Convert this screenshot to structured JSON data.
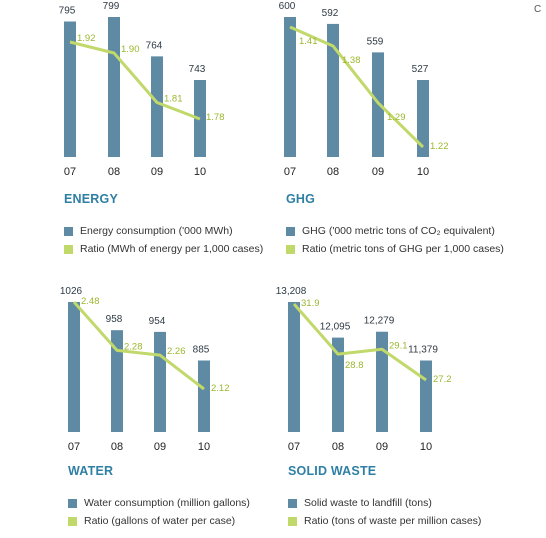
{
  "colors": {
    "bar": "#5e8aa3",
    "line": "#c1d86a",
    "ratio_text": "#9bb72f",
    "title": "#2f7fa5"
  },
  "corner_text": "C",
  "chart_data": [
    {
      "type": "bar",
      "title": "ENERGY",
      "categories": [
        "07",
        "08",
        "09",
        "10"
      ],
      "series": [
        {
          "name": "Energy consumption ('000 MWh)",
          "values": [
            795,
            799,
            764,
            743
          ],
          "labels": [
            "795",
            "799",
            "764",
            "743"
          ]
        },
        {
          "name": "Ratio (MWh of energy per 1,000 cases)",
          "values": [
            1.92,
            1.9,
            1.81,
            1.78
          ],
          "labels": [
            "1.92",
            "1.90",
            "1.81",
            "1.78"
          ]
        }
      ],
      "legend": [
        "Energy consumption ('000 MWh)",
        "Ratio (MWh of energy per 1,000 cases)"
      ]
    },
    {
      "type": "bar",
      "title": "GHG",
      "categories": [
        "07",
        "08",
        "09",
        "10"
      ],
      "series": [
        {
          "name": "GHG ('000 metric tons of CO₂ equivalent)",
          "values": [
            600,
            592,
            559,
            527
          ],
          "labels": [
            "600",
            "592",
            "559",
            "527"
          ]
        },
        {
          "name": "Ratio (metric tons of GHG per 1,000 cases)",
          "values": [
            1.41,
            1.38,
            1.29,
            1.22
          ],
          "labels": [
            "1.41",
            "1.38",
            "1.29",
            "1.22"
          ]
        }
      ],
      "legend": [
        "GHG ('000 metric tons of CO₂ equivalent)",
        "Ratio (metric tons of GHG per 1,000 cases)"
      ]
    },
    {
      "type": "bar",
      "title": "WATER",
      "categories": [
        "07",
        "08",
        "09",
        "10"
      ],
      "series": [
        {
          "name": "Water consumption (million gallons)",
          "values": [
            1026,
            958,
            954,
            885
          ],
          "labels": [
            "1026",
            "958",
            "954",
            "885"
          ]
        },
        {
          "name": "Ratio (gallons of water per case)",
          "values": [
            2.48,
            2.28,
            2.26,
            2.12
          ],
          "labels": [
            "2.48",
            "2.28",
            "2.26",
            "2.12"
          ]
        }
      ],
      "legend": [
        "Water consumption (million gallons)",
        "Ratio (gallons of water per case)"
      ]
    },
    {
      "type": "bar",
      "title": "SOLID WASTE",
      "categories": [
        "07",
        "08",
        "09",
        "10"
      ],
      "series": [
        {
          "name": "Solid waste to landfill (tons)",
          "values": [
            13208,
            12095,
            12279,
            11379
          ],
          "labels": [
            "13,208",
            "12,095",
            "12,279",
            "11,379"
          ]
        },
        {
          "name": "Ratio (tons of waste per million cases)",
          "values": [
            31.9,
            28.8,
            29.1,
            27.2
          ],
          "labels": [
            "31.9",
            "28.8",
            "29.1",
            "27.2"
          ]
        }
      ],
      "legend": [
        "Solid waste to landfill (tons)",
        "Ratio (tons of waste per million cases)"
      ]
    }
  ]
}
